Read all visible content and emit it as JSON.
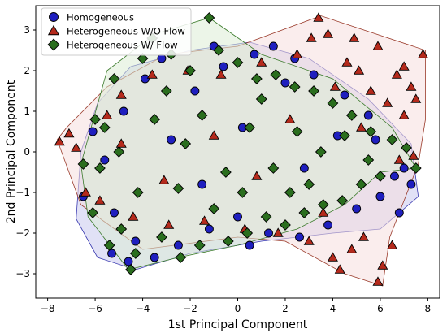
{
  "chart_data": {
    "type": "scatter",
    "title": "",
    "xlabel": "1st Principal Component",
    "ylabel": "2nd Principal Component",
    "xlim": [
      -8.5,
      8.5
    ],
    "ylim": [
      -3.6,
      3.6
    ],
    "x_ticks": [
      -8,
      -6,
      -4,
      -2,
      0,
      2,
      4,
      6,
      8
    ],
    "y_ticks": [
      -3,
      -2,
      -1,
      0,
      1,
      2,
      3
    ],
    "grid": false,
    "legend_position": "top-left",
    "series": [
      {
        "name": "Homogeneous",
        "marker": "circle",
        "color": "#1f1fbf",
        "edge_color": "#000000",
        "hull_fill": "#c9c9ee",
        "hull_stroke": "#3a3ab0",
        "hull": [
          [
            -6.8,
            -1.65
          ],
          [
            -5.9,
            -2.6
          ],
          [
            -4.3,
            -2.9
          ],
          [
            -2.0,
            -2.5
          ],
          [
            1.0,
            -2.2
          ],
          [
            4.0,
            -2.0
          ],
          [
            6.0,
            -1.9
          ],
          [
            7.6,
            -1.1
          ],
          [
            7.3,
            0.2
          ],
          [
            5.5,
            1.3
          ],
          [
            3.0,
            2.3
          ],
          [
            0.5,
            2.7
          ],
          [
            -2.0,
            2.5
          ],
          [
            -4.5,
            2.1
          ],
          [
            -5.9,
            1.2
          ],
          [
            -6.6,
            0.0
          ]
        ],
        "points": [
          [
            -5.6,
            -0.2
          ],
          [
            -5.2,
            -1.5
          ],
          [
            -4.8,
            1.0
          ],
          [
            -4.3,
            -2.2
          ],
          [
            -4.6,
            -2.7
          ],
          [
            -3.9,
            1.8
          ],
          [
            -3.2,
            2.3
          ],
          [
            -2.5,
            -2.3
          ],
          [
            -1.8,
            1.5
          ],
          [
            -1.2,
            -1.9
          ],
          [
            -0.6,
            2.1
          ],
          [
            0.0,
            -1.6
          ],
          [
            0.7,
            2.4
          ],
          [
            1.3,
            -2.0
          ],
          [
            2.0,
            1.7
          ],
          [
            2.6,
            -2.1
          ],
          [
            3.2,
            1.9
          ],
          [
            3.8,
            -1.8
          ],
          [
            4.5,
            1.4
          ],
          [
            5.0,
            -1.4
          ],
          [
            5.5,
            0.9
          ],
          [
            6.0,
            -1.1
          ],
          [
            6.6,
            -0.6
          ],
          [
            7.0,
            -0.4
          ],
          [
            7.3,
            -0.8
          ],
          [
            6.8,
            -1.5
          ],
          [
            -6.1,
            0.5
          ],
          [
            -6.5,
            -1.1
          ],
          [
            -3.5,
            -2.6
          ],
          [
            -1.0,
            2.6
          ],
          [
            1.5,
            2.6
          ],
          [
            -2.8,
            0.3
          ],
          [
            2.8,
            -0.4
          ],
          [
            0.2,
            0.6
          ],
          [
            -1.5,
            -0.8
          ],
          [
            4.2,
            0.4
          ],
          [
            5.8,
            0.3
          ],
          [
            -5.3,
            -2.5
          ],
          [
            0.5,
            -2.3
          ],
          [
            2.4,
            2.3
          ]
        ]
      },
      {
        "name": "Heterogeneous W/O Flow",
        "marker": "triangle",
        "color": "#b52a1c",
        "edge_color": "#000000",
        "hull_fill": "#f6dfdf",
        "hull_stroke": "#9a3a2a",
        "hull": [
          [
            -7.2,
            0.6
          ],
          [
            -7.6,
            0.3
          ],
          [
            -6.6,
            -1.3
          ],
          [
            -4.0,
            -2.4
          ],
          [
            0.0,
            -2.1
          ],
          [
            2.0,
            -2.2
          ],
          [
            4.5,
            -3.0
          ],
          [
            6.1,
            -3.3
          ],
          [
            6.4,
            -2.1
          ],
          [
            7.6,
            -0.3
          ],
          [
            7.9,
            0.8
          ],
          [
            7.9,
            2.5
          ],
          [
            3.5,
            3.35
          ],
          [
            0.0,
            2.6
          ],
          [
            -3.0,
            2.4
          ],
          [
            -5.5,
            1.6
          ]
        ],
        "points": [
          [
            -7.1,
            0.45
          ],
          [
            -7.5,
            0.25
          ],
          [
            -6.8,
            0.1
          ],
          [
            -6.4,
            -1.0
          ],
          [
            -5.8,
            -1.2
          ],
          [
            -5.5,
            0.9
          ],
          [
            -4.9,
            1.4
          ],
          [
            -4.4,
            -1.6
          ],
          [
            -3.6,
            1.9
          ],
          [
            -2.9,
            -1.8
          ],
          [
            -2.1,
            2.0
          ],
          [
            -1.4,
            -1.7
          ],
          [
            -0.7,
            1.9
          ],
          [
            0.3,
            -1.9
          ],
          [
            1.0,
            2.2
          ],
          [
            1.7,
            -2.0
          ],
          [
            2.5,
            2.4
          ],
          [
            3.0,
            -2.2
          ],
          [
            3.4,
            3.3
          ],
          [
            3.8,
            2.9
          ],
          [
            4.0,
            -2.6
          ],
          [
            4.3,
            -2.9
          ],
          [
            4.6,
            2.2
          ],
          [
            4.8,
            -2.4
          ],
          [
            5.1,
            2.0
          ],
          [
            5.3,
            -2.1
          ],
          [
            5.6,
            1.5
          ],
          [
            5.9,
            -3.2
          ],
          [
            6.1,
            -2.8
          ],
          [
            6.3,
            1.2
          ],
          [
            6.7,
            1.9
          ],
          [
            7.0,
            2.1
          ],
          [
            7.3,
            1.6
          ],
          [
            7.5,
            1.3
          ],
          [
            7.8,
            2.4
          ],
          [
            7.0,
            0.9
          ],
          [
            6.8,
            -0.2
          ],
          [
            7.4,
            -0.1
          ],
          [
            5.2,
            0.6
          ],
          [
            4.1,
            1.6
          ],
          [
            3.6,
            -1.5
          ],
          [
            2.2,
            0.8
          ],
          [
            0.8,
            -0.6
          ],
          [
            -1.0,
            0.4
          ],
          [
            -3.1,
            -0.7
          ],
          [
            -4.9,
            0.2
          ],
          [
            5.9,
            2.6
          ],
          [
            4.9,
            2.8
          ],
          [
            3.1,
            2.8
          ],
          [
            6.5,
            -2.3
          ]
        ]
      },
      {
        "name": "Heterogeneous W/ Flow",
        "marker": "diamond",
        "color": "#2a6e1e",
        "edge_color": "#000000",
        "hull_fill": "#dcecd6",
        "hull_stroke": "#3a7a2a",
        "hull": [
          [
            -6.6,
            -0.3
          ],
          [
            -6.3,
            -1.6
          ],
          [
            -4.6,
            -2.9
          ],
          [
            -2.5,
            -2.6
          ],
          [
            0.0,
            -2.3
          ],
          [
            2.5,
            -1.9
          ],
          [
            4.5,
            -1.3
          ],
          [
            6.0,
            -0.5
          ],
          [
            7.5,
            -0.4
          ],
          [
            6.5,
            0.6
          ],
          [
            4.0,
            1.8
          ],
          [
            1.0,
            2.4
          ],
          [
            -1.2,
            3.3
          ],
          [
            -3.5,
            2.9
          ],
          [
            -5.5,
            2.0
          ]
        ],
        "points": [
          [
            -6.5,
            -0.3
          ],
          [
            -6.1,
            -1.5
          ],
          [
            -5.8,
            -0.4
          ],
          [
            -5.6,
            0.6
          ],
          [
            -5.2,
            1.8
          ],
          [
            -4.9,
            -1.9
          ],
          [
            -4.5,
            -2.9
          ],
          [
            -4.3,
            -2.5
          ],
          [
            -4.0,
            2.3
          ],
          [
            -3.6,
            2.8
          ],
          [
            -3.2,
            -2.1
          ],
          [
            -2.8,
            2.4
          ],
          [
            -2.4,
            -2.6
          ],
          [
            -2.0,
            2.0
          ],
          [
            -1.6,
            -2.3
          ],
          [
            -1.2,
            3.3
          ],
          [
            -0.8,
            2.5
          ],
          [
            -0.4,
            -2.2
          ],
          [
            0.0,
            2.2
          ],
          [
            0.4,
            -2.0
          ],
          [
            0.8,
            1.8
          ],
          [
            1.2,
            -1.6
          ],
          [
            1.6,
            1.9
          ],
          [
            2.0,
            -1.8
          ],
          [
            2.4,
            1.6
          ],
          [
            2.8,
            -1.5
          ],
          [
            3.2,
            1.5
          ],
          [
            3.6,
            -1.3
          ],
          [
            4.0,
            1.2
          ],
          [
            4.4,
            -1.2
          ],
          [
            4.8,
            0.9
          ],
          [
            5.2,
            -0.8
          ],
          [
            5.6,
            0.5
          ],
          [
            6.0,
            -0.6
          ],
          [
            6.5,
            0.3
          ],
          [
            7.1,
            0.1
          ],
          [
            7.5,
            -0.4
          ],
          [
            -5.0,
            0.0
          ],
          [
            -3.5,
            0.8
          ],
          [
            -2.5,
            -0.9
          ],
          [
            -1.5,
            0.9
          ],
          [
            -0.5,
            -0.5
          ],
          [
            0.5,
            0.6
          ],
          [
            1.5,
            -0.4
          ],
          [
            2.5,
            0.5
          ],
          [
            3.5,
            0.0
          ],
          [
            4.5,
            0.4
          ],
          [
            -4.2,
            -1.0
          ],
          [
            -3.0,
            1.5
          ],
          [
            -1.0,
            -1.4
          ],
          [
            1.0,
            1.3
          ],
          [
            3.0,
            -0.8
          ],
          [
            -6.0,
            0.8
          ],
          [
            -5.4,
            -2.3
          ],
          [
            0.2,
            -1.0
          ],
          [
            -2.2,
            0.2
          ],
          [
            2.2,
            -1.0
          ],
          [
            5.5,
            -0.2
          ]
        ]
      }
    ]
  }
}
